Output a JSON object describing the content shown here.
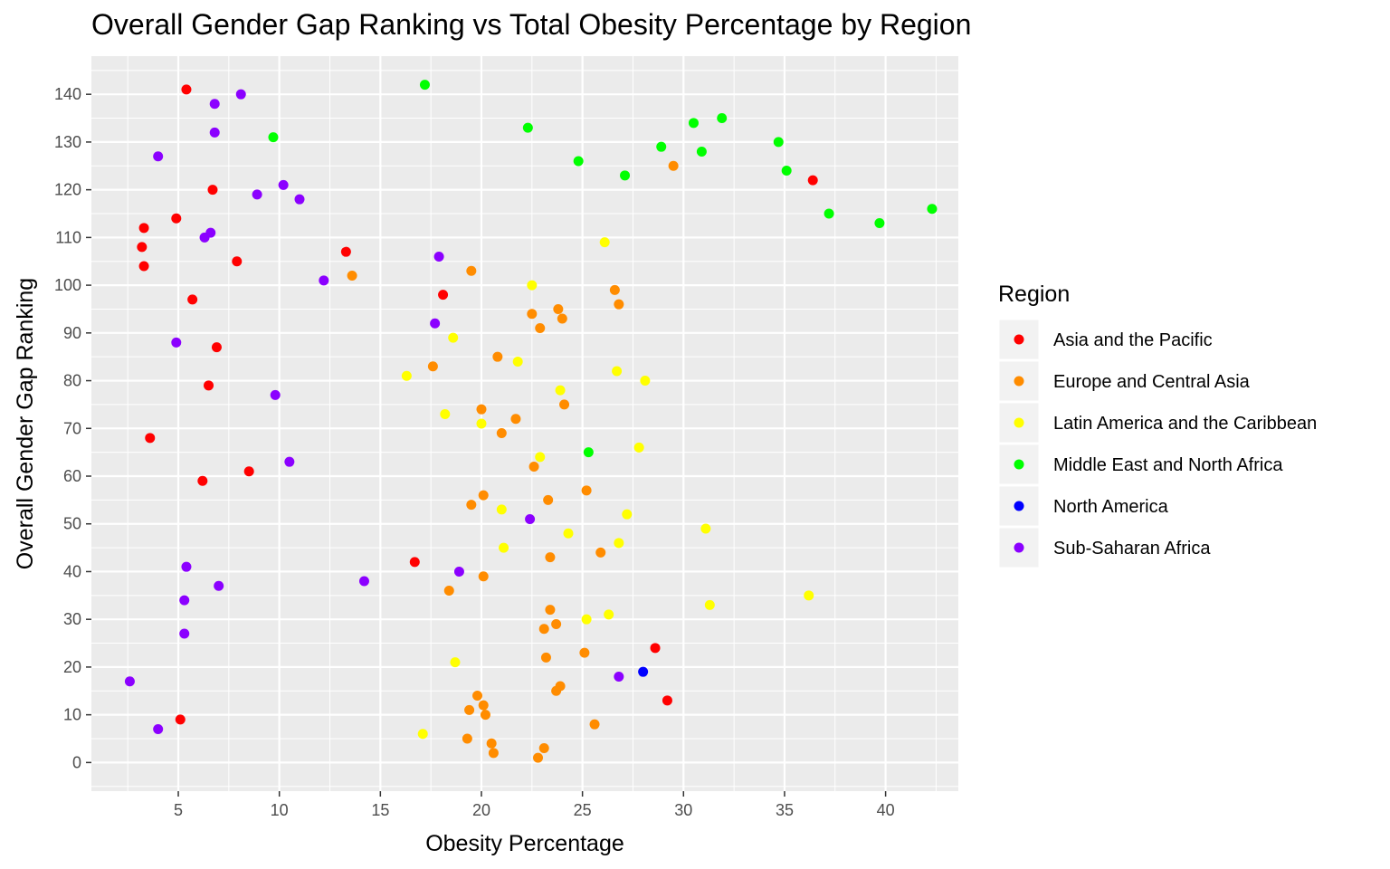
{
  "chart_data": {
    "type": "scatter",
    "title": "Overall Gender Gap Ranking vs Total Obesity Percentage by Region",
    "xlabel": "Obesity Percentage",
    "ylabel": "Overall Gender Gap Ranking",
    "xlim": [
      0.7,
      43.6
    ],
    "ylim": [
      -6,
      148
    ],
    "x_ticks": [
      5,
      10,
      15,
      20,
      25,
      30,
      35,
      40
    ],
    "y_ticks": [
      0,
      10,
      20,
      30,
      40,
      50,
      60,
      70,
      80,
      90,
      100,
      110,
      120,
      130,
      140
    ],
    "grid": true,
    "legend": {
      "title": "Region",
      "placement": "right"
    },
    "series": [
      {
        "name": "Asia and the Pacific",
        "color": "#ff0000",
        "points": [
          [
            5.4,
            141
          ],
          [
            6.7,
            120
          ],
          [
            4.9,
            114
          ],
          [
            3.3,
            112
          ],
          [
            3.2,
            108
          ],
          [
            3.3,
            104
          ],
          [
            7.9,
            105
          ],
          [
            13.3,
            107
          ],
          [
            5.7,
            97
          ],
          [
            18.1,
            98
          ],
          [
            6.9,
            87
          ],
          [
            6.5,
            79
          ],
          [
            3.6,
            68
          ],
          [
            8.5,
            61
          ],
          [
            6.2,
            59
          ],
          [
            16.7,
            42
          ],
          [
            5.1,
            9
          ],
          [
            36.4,
            122
          ],
          [
            28.6,
            24
          ],
          [
            29.2,
            13
          ]
        ]
      },
      {
        "name": "Europe and Central Asia",
        "color": "#ff8c00",
        "points": [
          [
            29.5,
            125
          ],
          [
            13.6,
            102
          ],
          [
            19.5,
            103
          ],
          [
            26.6,
            99
          ],
          [
            26.8,
            96
          ],
          [
            22.5,
            94
          ],
          [
            23.8,
            95
          ],
          [
            24.0,
            93
          ],
          [
            22.9,
            91
          ],
          [
            17.6,
            83
          ],
          [
            20.8,
            85
          ],
          [
            24.1,
            75
          ],
          [
            20.0,
            74
          ],
          [
            21.7,
            72
          ],
          [
            21.0,
            69
          ],
          [
            22.6,
            62
          ],
          [
            25.2,
            57
          ],
          [
            20.1,
            56
          ],
          [
            19.5,
            54
          ],
          [
            23.3,
            55
          ],
          [
            25.9,
            44
          ],
          [
            23.4,
            43
          ],
          [
            20.1,
            39
          ],
          [
            18.4,
            36
          ],
          [
            23.4,
            32
          ],
          [
            23.7,
            29
          ],
          [
            23.1,
            28
          ],
          [
            25.1,
            23
          ],
          [
            23.2,
            22
          ],
          [
            23.9,
            16
          ],
          [
            23.7,
            15
          ],
          [
            19.8,
            14
          ],
          [
            20.1,
            12
          ],
          [
            19.4,
            11
          ],
          [
            20.2,
            10
          ],
          [
            25.6,
            8
          ],
          [
            19.3,
            5
          ],
          [
            20.5,
            4
          ],
          [
            23.1,
            3
          ],
          [
            20.6,
            2
          ],
          [
            22.8,
            1
          ]
        ]
      },
      {
        "name": "Latin America and the Caribbean",
        "color": "#ffff00",
        "points": [
          [
            26.1,
            109
          ],
          [
            22.5,
            100
          ],
          [
            18.6,
            89
          ],
          [
            21.8,
            84
          ],
          [
            16.3,
            81
          ],
          [
            26.7,
            82
          ],
          [
            28.1,
            80
          ],
          [
            23.9,
            78
          ],
          [
            18.2,
            73
          ],
          [
            20.0,
            71
          ],
          [
            27.8,
            66
          ],
          [
            22.9,
            64
          ],
          [
            21.0,
            53
          ],
          [
            27.2,
            52
          ],
          [
            31.1,
            49
          ],
          [
            24.3,
            48
          ],
          [
            26.8,
            46
          ],
          [
            21.1,
            45
          ],
          [
            36.2,
            35
          ],
          [
            31.3,
            33
          ],
          [
            26.3,
            31
          ],
          [
            25.2,
            30
          ],
          [
            18.7,
            21
          ],
          [
            17.1,
            6
          ]
        ]
      },
      {
        "name": "Middle East and North Africa",
        "color": "#00ff00",
        "points": [
          [
            17.2,
            142
          ],
          [
            22.3,
            133
          ],
          [
            30.5,
            134
          ],
          [
            31.9,
            135
          ],
          [
            9.7,
            131
          ],
          [
            28.9,
            129
          ],
          [
            34.7,
            130
          ],
          [
            30.9,
            128
          ],
          [
            24.8,
            126
          ],
          [
            27.1,
            123
          ],
          [
            35.1,
            124
          ],
          [
            37.2,
            115
          ],
          [
            39.7,
            113
          ],
          [
            42.3,
            116
          ],
          [
            25.3,
            65
          ]
        ]
      },
      {
        "name": "North America",
        "color": "#0000ff",
        "points": [
          [
            28.0,
            19
          ]
        ]
      },
      {
        "name": "Sub-Saharan Africa",
        "color": "#8b00ff",
        "points": [
          [
            8.1,
            140
          ],
          [
            6.8,
            138
          ],
          [
            6.8,
            132
          ],
          [
            4.0,
            127
          ],
          [
            10.2,
            121
          ],
          [
            8.9,
            119
          ],
          [
            11.0,
            118
          ],
          [
            6.6,
            111
          ],
          [
            6.3,
            110
          ],
          [
            17.9,
            106
          ],
          [
            12.2,
            101
          ],
          [
            17.7,
            92
          ],
          [
            4.9,
            88
          ],
          [
            9.8,
            77
          ],
          [
            10.5,
            63
          ],
          [
            22.4,
            51
          ],
          [
            5.4,
            41
          ],
          [
            18.9,
            40
          ],
          [
            14.2,
            38
          ],
          [
            7.0,
            37
          ],
          [
            5.3,
            34
          ],
          [
            5.3,
            27
          ],
          [
            26.8,
            18
          ],
          [
            2.6,
            17
          ],
          [
            4.0,
            7
          ]
        ]
      }
    ]
  }
}
